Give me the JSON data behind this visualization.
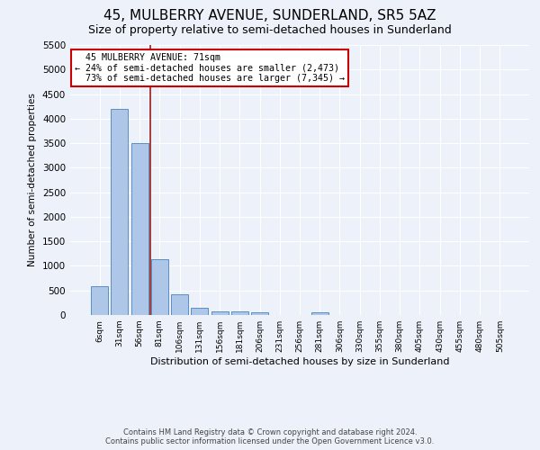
{
  "title1": "45, MULBERRY AVENUE, SUNDERLAND, SR5 5AZ",
  "title2": "Size of property relative to semi-detached houses in Sunderland",
  "xlabel": "Distribution of semi-detached houses by size in Sunderland",
  "ylabel": "Number of semi-detached properties",
  "categories": [
    "6sqm",
    "31sqm",
    "56sqm",
    "81sqm",
    "106sqm",
    "131sqm",
    "156sqm",
    "181sqm",
    "206sqm",
    "231sqm",
    "256sqm",
    "281sqm",
    "306sqm",
    "330sqm",
    "355sqm",
    "380sqm",
    "405sqm",
    "430sqm",
    "455sqm",
    "480sqm",
    "505sqm"
  ],
  "values": [
    580,
    4200,
    3500,
    1130,
    420,
    140,
    80,
    70,
    60,
    0,
    0,
    60,
    0,
    0,
    0,
    0,
    0,
    0,
    0,
    0,
    0
  ],
  "bar_color": "#aec6e8",
  "bar_edge_color": "#5a8fc0",
  "ylim": [
    0,
    5500
  ],
  "yticks": [
    0,
    500,
    1000,
    1500,
    2000,
    2500,
    3000,
    3500,
    4000,
    4500,
    5000,
    5500
  ],
  "red_line_x": 2.55,
  "annotation_text": "  45 MULBERRY AVENUE: 71sqm\n← 24% of semi-detached houses are smaller (2,473)\n  73% of semi-detached houses are larger (7,345) →",
  "annotation_box_color": "#ffffff",
  "annotation_box_edge": "#cc0000",
  "red_line_color": "#9b1c1c",
  "footer1": "Contains HM Land Registry data © Crown copyright and database right 2024.",
  "footer2": "Contains public sector information licensed under the Open Government Licence v3.0.",
  "bg_color": "#edf2fa",
  "grid_color": "#ffffff",
  "title1_fontsize": 11,
  "title2_fontsize": 9
}
